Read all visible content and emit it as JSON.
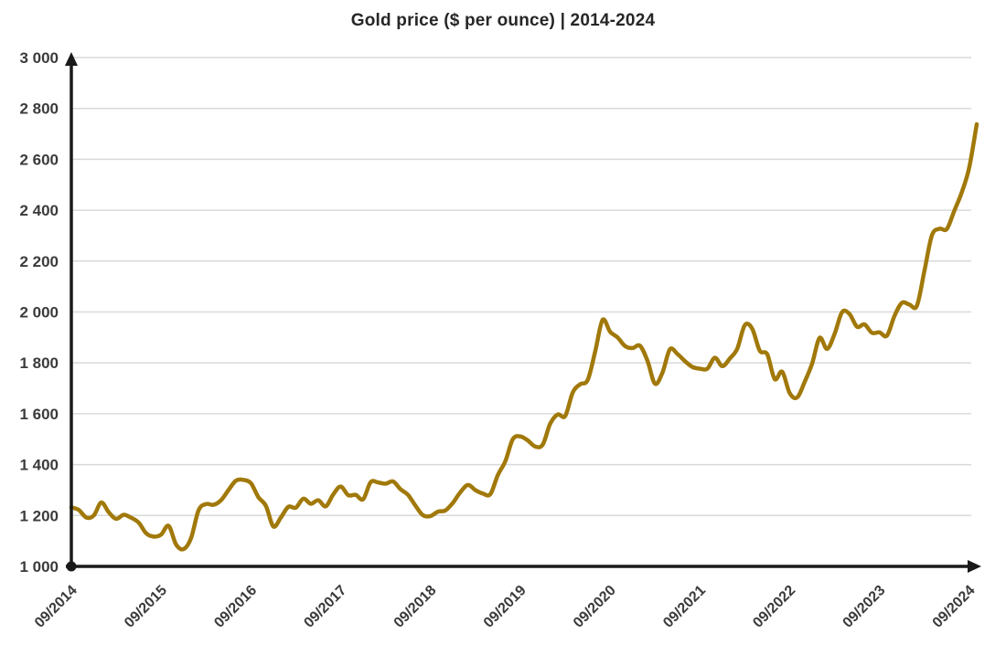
{
  "title": "Gold price ($ per ounce) | 2014-2024",
  "chart_data": {
    "type": "line",
    "title": "Gold price ($ per ounce) | 2014-2024",
    "series_name": "Gold price ($ per ounce)",
    "x_interval": "monthly",
    "x_start": "09/2014",
    "x_end": "10/2024",
    "ylim": [
      1000,
      3000
    ],
    "ytick_step": 200,
    "ytick_labels": [
      "1 000",
      "1 200",
      "1 400",
      "1 600",
      "1 800",
      "2 000",
      "2 200",
      "2 400",
      "2 600",
      "2 800",
      "3 000"
    ],
    "xtick_labels": [
      "09/2014",
      "09/2015",
      "09/2016",
      "09/2017",
      "09/2018",
      "09/2019",
      "09/2020",
      "09/2021",
      "09/2022",
      "09/2023",
      "09/2024"
    ],
    "xtick_every": 12,
    "grid": true,
    "legend": "none",
    "line_color": "#A1790A",
    "axis_color": "#1a1a1a",
    "grid_color": "#d9d9d9",
    "values": [
      1232,
      1222,
      1192,
      1200,
      1251,
      1213,
      1187,
      1203,
      1191,
      1172,
      1130,
      1117,
      1125,
      1159,
      1086,
      1068,
      1111,
      1220,
      1245,
      1242,
      1260,
      1300,
      1337,
      1340,
      1327,
      1272,
      1238,
      1157,
      1192,
      1234,
      1231,
      1266,
      1246,
      1260,
      1236,
      1283,
      1314,
      1280,
      1281,
      1264,
      1331,
      1330,
      1325,
      1334,
      1303,
      1281,
      1238,
      1201,
      1198,
      1215,
      1220,
      1250,
      1292,
      1320,
      1300,
      1286,
      1284,
      1359,
      1413,
      1500,
      1511,
      1495,
      1471,
      1479,
      1561,
      1597,
      1591,
      1683,
      1716,
      1732,
      1843,
      1969,
      1922,
      1900,
      1866,
      1858,
      1867,
      1808,
      1718,
      1762,
      1853,
      1835,
      1807,
      1784,
      1777,
      1777,
      1820,
      1787,
      1817,
      1856,
      1948,
      1934,
      1848,
      1834,
      1736,
      1765,
      1681,
      1664,
      1725,
      1797,
      1898,
      1855,
      1913,
      1999,
      1992,
      1942,
      1951,
      1918,
      1920,
      1907,
      1984,
      2036,
      2029,
      2024,
      2160,
      2300,
      2327,
      2326,
      2398,
      2470,
      2568,
      2738
    ]
  }
}
